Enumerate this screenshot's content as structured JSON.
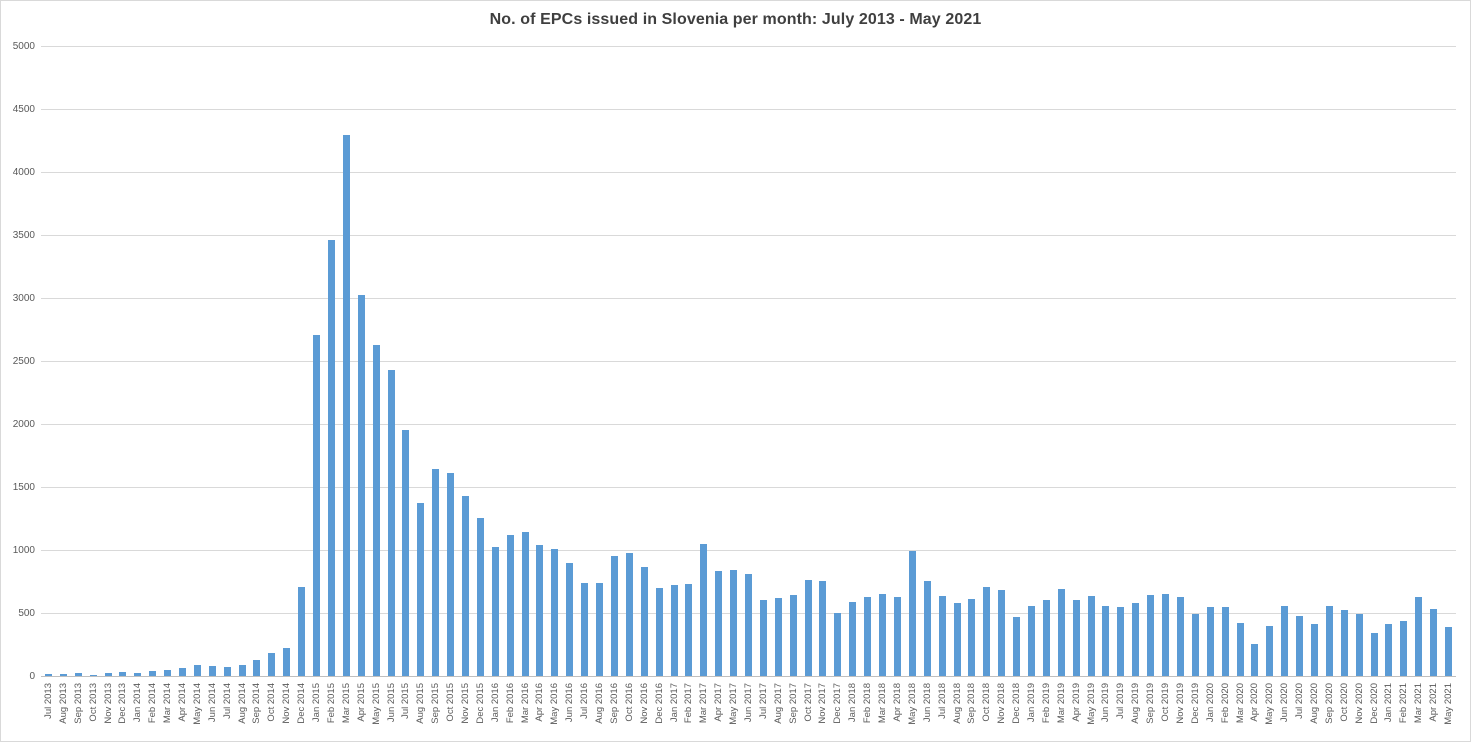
{
  "colors": {
    "bar": "#5b9bd5",
    "gridline": "#d9d9d9",
    "axis_line": "#bfbfbf",
    "axis_text": "#595959",
    "title_text": "#3f3f3f",
    "background": "#ffffff"
  },
  "chart_data": {
    "type": "bar",
    "title": "No. of EPCs issued in Slovenia per month: July 2013 - May 2021",
    "xlabel": "",
    "ylabel": "",
    "ylim": [
      0,
      5000
    ],
    "yticks": [
      0,
      500,
      1000,
      1500,
      2000,
      2500,
      3000,
      3500,
      4000,
      4500,
      5000
    ],
    "grid": true,
    "legend": false,
    "bar_color": "#5b9bd5",
    "categories": [
      "Jul 2013",
      "Aug 2013",
      "Sep 2013",
      "Oct 2013",
      "Nov 2013",
      "Dec 2013",
      "Jan 2014",
      "Feb 2014",
      "Mar 2014",
      "Apr 2014",
      "May 2014",
      "Jun 2014",
      "Jul 2014",
      "Aug 2014",
      "Sep 2014",
      "Oct 2014",
      "Nov 2014",
      "Dec 2014",
      "Jan 2015",
      "Feb 2015",
      "Mar 2015",
      "Apr 2015",
      "May 2015",
      "Jun 2015",
      "Jul 2015",
      "Aug 2015",
      "Sep 2015",
      "Oct 2015",
      "Nov 2015",
      "Dec 2015",
      "Jan 2016",
      "Feb 2016",
      "Mar 2016",
      "Apr 2016",
      "May 2016",
      "Jun 2016",
      "Jul 2016",
      "Aug 2016",
      "Sep 2016",
      "Oct 2016",
      "Nov 2016",
      "Dec 2016",
      "Jan 2017",
      "Feb 2017",
      "Mar 2017",
      "Apr 2017",
      "May 2017",
      "Jun 2017",
      "Jul 2017",
      "Aug 2017",
      "Sep 2017",
      "Oct 2017",
      "Nov 2017",
      "Dec 2017",
      "Jan 2018",
      "Feb 2018",
      "Mar 2018",
      "Apr 2018",
      "May 2018",
      "Jun 2018",
      "Jul 2018",
      "Aug 2018",
      "Sep 2018",
      "Oct 2018",
      "Nov 2018",
      "Dec 2018",
      "Jan 2019",
      "Feb 2019",
      "Mar 2019",
      "Apr 2019",
      "May 2019",
      "Jun 2019",
      "Jul 2019",
      "Aug 2019",
      "Sep 2019",
      "Oct 2019",
      "Nov 2019",
      "Dec 2019",
      "Jan 2020",
      "Feb 2020",
      "Mar 2020",
      "Apr 2020",
      "May 2020",
      "Jun 2020",
      "Jul 2020",
      "Aug 2020",
      "Sep 2020",
      "Oct 2020",
      "Nov 2020",
      "Dec 2020",
      "Jan 2021",
      "Feb 2021",
      "Mar 2021",
      "Apr 2021",
      "May 2021"
    ],
    "values": [
      15,
      15,
      25,
      10,
      25,
      30,
      25,
      40,
      45,
      65,
      90,
      80,
      70,
      90,
      125,
      180,
      225,
      710,
      2710,
      3460,
      4290,
      3020,
      2630,
      2430,
      1950,
      1375,
      1645,
      1610,
      1425,
      1255,
      1025,
      1120,
      1140,
      1040,
      1005,
      900,
      740,
      740,
      955,
      980,
      865,
      695,
      725,
      730,
      1050,
      830,
      840,
      810,
      600,
      620,
      640,
      760,
      755,
      500,
      590,
      625,
      650,
      630,
      995,
      755,
      635,
      580,
      615,
      705,
      680,
      470,
      555,
      605,
      690,
      600,
      635,
      555,
      545,
      580,
      640,
      650,
      630,
      490,
      550,
      545,
      420,
      250,
      395,
      555,
      475,
      415,
      555,
      520,
      495,
      345,
      415,
      435,
      630,
      530,
      385
    ]
  }
}
